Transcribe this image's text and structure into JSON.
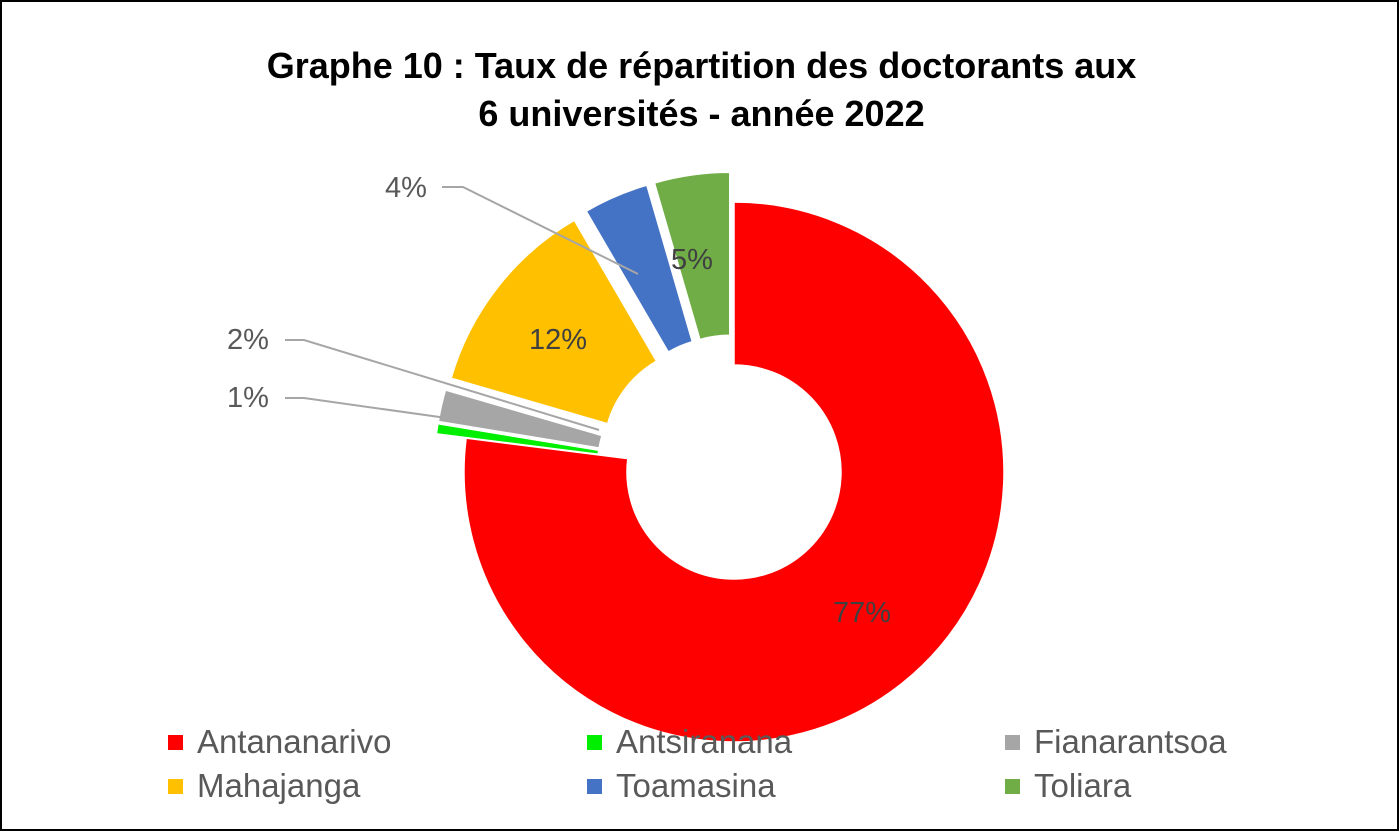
{
  "chart_data": {
    "type": "pie",
    "variant": "doughnut-exploded",
    "title_lines": [
      "Graphe 10 : Taux de répartition des doctorants aux",
      "6 universités - année 2022"
    ],
    "categories": [
      "Antananarivo",
      "Antsiranana",
      "Fianarantsoa",
      "Mahajanga",
      "Toamasina",
      "Toliara"
    ],
    "values": [
      77,
      0.6,
      1.9,
      12.1,
      3.9,
      4.5
    ],
    "labels": [
      "77%",
      "1%",
      "2%",
      "12%",
      "4%",
      "5%"
    ],
    "colors": [
      "#ff0000",
      "#00ee00",
      "#a6a6a6",
      "#ffc000",
      "#4472c4",
      "#70ad47"
    ],
    "legend_position": "bottom"
  }
}
